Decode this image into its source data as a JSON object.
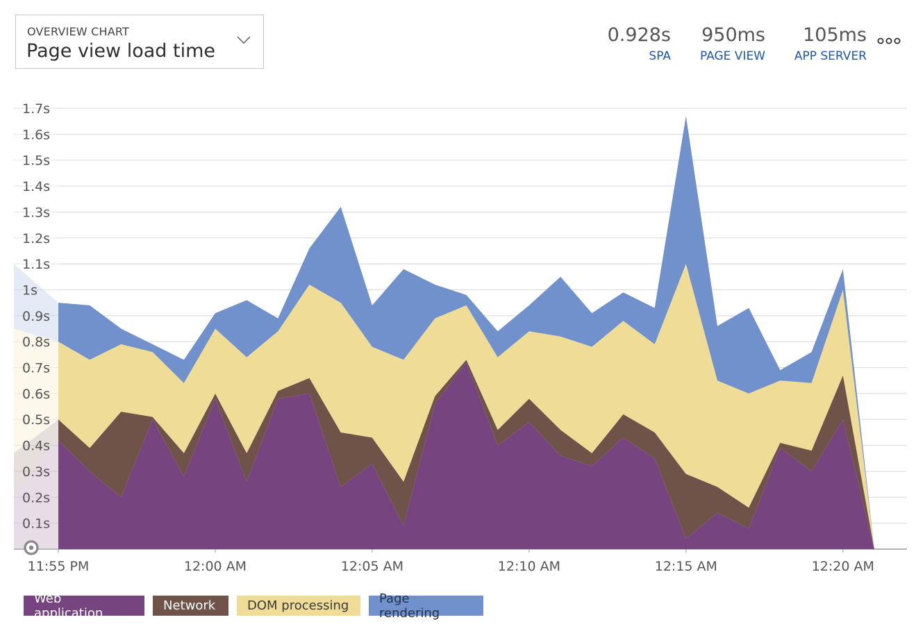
{
  "header": {
    "kicker": "OVERVIEW CHART",
    "title": "Page view load time"
  },
  "summary": [
    {
      "value": "0.928s",
      "label": "SPA"
    },
    {
      "value": "950ms",
      "label": "PAGE VIEW"
    },
    {
      "value": "105ms",
      "label": "APP SERVER"
    }
  ],
  "colors": {
    "web_application": "#76457f",
    "network": "#6f5248",
    "dom_processing": "#efdc96",
    "page_rendering": "#7091cb",
    "link": "#1a56b4",
    "grid": "#d8d8d8"
  },
  "chart_data": {
    "type": "area",
    "stacked": true,
    "ylim": [
      0,
      1.7
    ],
    "yticks": [
      "0.1s",
      "0.2s",
      "0.3s",
      "0.4s",
      "0.5s",
      "0.6s",
      "0.7s",
      "0.8s",
      "0.9s",
      "1s",
      "1.1s",
      "1.2s",
      "1.3s",
      "1.4s",
      "1.5s",
      "1.6s",
      "1.7s"
    ],
    "xticks": [
      "11:55 PM",
      "12:00 AM",
      "12:05 AM",
      "12:10 AM",
      "12:15 AM",
      "12:20 AM"
    ],
    "x": [
      "11:55 PM",
      "11:56 PM",
      "11:57 PM",
      "11:58 PM",
      "11:59 PM",
      "12:00 AM",
      "12:01 AM",
      "12:02 AM",
      "12:03 AM",
      "12:04 AM",
      "12:05 AM",
      "12:06 AM",
      "12:07 AM",
      "12:08 AM",
      "12:09 AM",
      "12:10 AM",
      "12:11 AM",
      "12:12 AM",
      "12:13 AM",
      "12:14 AM",
      "12:15 AM",
      "12:16 AM",
      "12:17 AM",
      "12:18 AM",
      "12:19 AM",
      "12:20 AM",
      "12:21 AM"
    ],
    "series": [
      {
        "name": "Web application",
        "color": "#76457f",
        "values": [
          0.42,
          0.3,
          0.2,
          0.5,
          0.28,
          0.58,
          0.26,
          0.58,
          0.6,
          0.24,
          0.33,
          0.09,
          0.56,
          0.72,
          0.4,
          0.49,
          0.36,
          0.32,
          0.43,
          0.35,
          0.04,
          0.14,
          0.08,
          0.39,
          0.3,
          0.5,
          0.0
        ]
      },
      {
        "name": "Network",
        "color": "#6f5248",
        "values": [
          0.08,
          0.09,
          0.33,
          0.01,
          0.09,
          0.02,
          0.11,
          0.03,
          0.06,
          0.21,
          0.1,
          0.17,
          0.03,
          0.01,
          0.06,
          0.09,
          0.1,
          0.05,
          0.09,
          0.1,
          0.25,
          0.1,
          0.08,
          0.02,
          0.08,
          0.17,
          0.0
        ]
      },
      {
        "name": "DOM processing",
        "color": "#efdc96",
        "values": [
          0.3,
          0.34,
          0.26,
          0.25,
          0.27,
          0.25,
          0.37,
          0.23,
          0.36,
          0.5,
          0.35,
          0.47,
          0.3,
          0.21,
          0.28,
          0.26,
          0.36,
          0.41,
          0.36,
          0.34,
          0.81,
          0.41,
          0.44,
          0.24,
          0.26,
          0.33,
          0.0
        ]
      },
      {
        "name": "Page rendering",
        "color": "#7091cb",
        "values": [
          0.15,
          0.21,
          0.06,
          0.03,
          0.09,
          0.06,
          0.22,
          0.05,
          0.14,
          0.37,
          0.16,
          0.35,
          0.13,
          0.04,
          0.1,
          0.1,
          0.23,
          0.13,
          0.11,
          0.14,
          0.57,
          0.21,
          0.33,
          0.04,
          0.12,
          0.08,
          0.0
        ]
      }
    ],
    "legend": "bottom-left",
    "grid": true
  }
}
